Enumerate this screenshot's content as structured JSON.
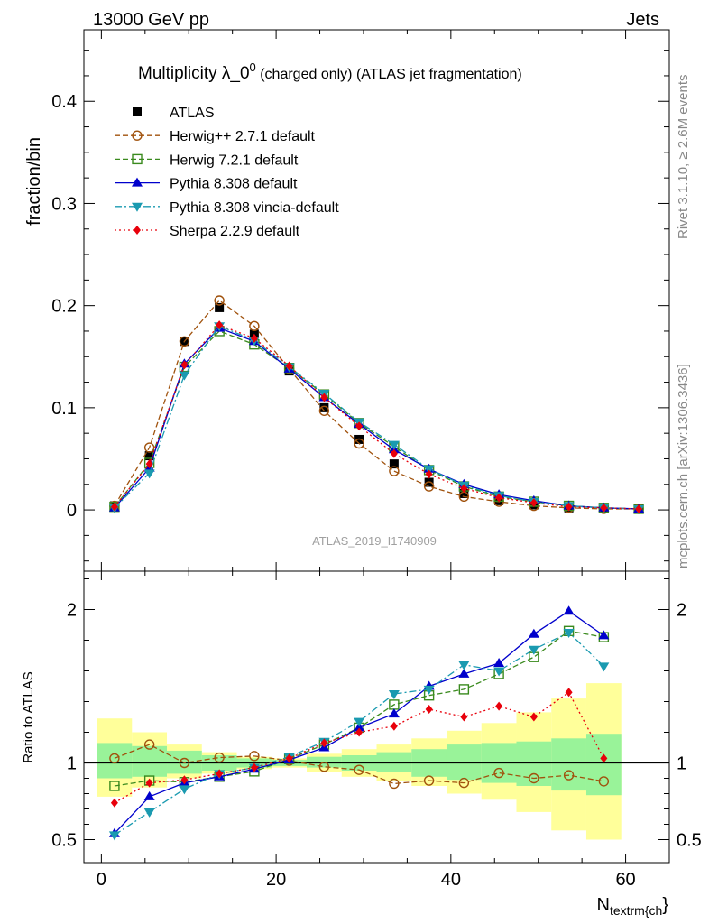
{
  "header": {
    "left": "13000 GeV pp",
    "right": "Jets"
  },
  "side": {
    "rivet": "Rivet 3.1.10, ≥ 2.6M events",
    "mcplots": "mcplots.cern.ch [arXiv:1306.3436]"
  },
  "chart_data": [
    {
      "type": "line",
      "title": "Multiplicity λ_0⁰ (charged only) (ATLAS jet fragmentation)",
      "title_main": "Multiplicity λ_0",
      "title_sup": "0",
      "title_tail": " (charged only) (ATLAS jet fragmentation)",
      "ylabel": "fraction/bin",
      "watermark": "ATLAS_2019_I1740909",
      "xlim": [
        -2,
        65
      ],
      "ylim": [
        -0.06,
        0.47
      ],
      "yticks": [
        0,
        0.1,
        0.2,
        0.3,
        0.4
      ],
      "ytick_labels": [
        "0",
        "0.1",
        "0.2",
        "0.3",
        "0.4"
      ],
      "legend_position": "top-left",
      "x": [
        1.5,
        5.5,
        9.5,
        13.5,
        17.5,
        21.5,
        25.5,
        29.5,
        33.5,
        37.5,
        41.5,
        45.5,
        49.5,
        53.5,
        57.5,
        61.5
      ],
      "series": [
        {
          "name": "ATLAS",
          "color": "#000000",
          "marker": "square",
          "line": "none",
          "values": [
            0.004,
            0.053,
            0.165,
            0.198,
            0.172,
            0.136,
            0.1,
            0.069,
            0.045,
            0.027,
            0.016,
            0.009,
            0.005,
            0.002,
            0.001,
            0.001
          ]
        },
        {
          "name": "Herwig++ 2.7.1 default",
          "color": "#a0520d",
          "marker": "circle-open",
          "line": "dashed",
          "values": [
            0.004,
            0.061,
            0.165,
            0.205,
            0.18,
            0.138,
            0.097,
            0.065,
            0.038,
            0.023,
            0.013,
            0.008,
            0.004,
            0.002,
            0.001,
            0.001
          ]
        },
        {
          "name": "Herwig 7.2.1 default",
          "color": "#3a8a1e",
          "marker": "square-open",
          "line": "dashed",
          "values": [
            0.003,
            0.046,
            0.14,
            0.175,
            0.162,
            0.139,
            0.113,
            0.085,
            0.062,
            0.039,
            0.023,
            0.013,
            0.008,
            0.004,
            0.002,
            0.001
          ]
        },
        {
          "name": "Pythia 8.308 default",
          "color": "#0000cc",
          "marker": "triangle-up",
          "line": "solid",
          "values": [
            0.002,
            0.041,
            0.143,
            0.178,
            0.165,
            0.138,
            0.11,
            0.084,
            0.059,
            0.04,
            0.025,
            0.015,
            0.009,
            0.004,
            0.002,
            0.001
          ]
        },
        {
          "name": "Pythia 8.308 vincia-default",
          "color": "#1a9ab0",
          "marker": "triangle-down",
          "line": "dashdot",
          "values": [
            0.002,
            0.036,
            0.132,
            0.18,
            0.166,
            0.14,
            0.114,
            0.086,
            0.064,
            0.04,
            0.024,
            0.014,
            0.008,
            0.004,
            0.002,
            0.001
          ]
        },
        {
          "name": "Sherpa 2.2.9 default",
          "color": "#e8000b",
          "marker": "diamond",
          "line": "dotted",
          "values": [
            0.003,
            0.045,
            0.142,
            0.181,
            0.168,
            0.141,
            0.11,
            0.082,
            0.055,
            0.035,
            0.021,
            0.012,
            0.007,
            0.003,
            0.002,
            0.001
          ]
        }
      ]
    },
    {
      "type": "line",
      "ylabel": "Ratio to ATLAS",
      "xlabel": "N_{textrm{ch}}",
      "xlabel_main": "N",
      "xlabel_sub": "textrm{ch",
      "xlabel_tail": "}",
      "xlim": [
        -2,
        65
      ],
      "ylim": [
        0.35,
        2.25
      ],
      "xticks": [
        0,
        20,
        40,
        60
      ],
      "xtick_labels": [
        "0",
        "20",
        "40",
        "60"
      ],
      "yticks": [
        0.5,
        1,
        2
      ],
      "ytick_labels": [
        "0.5",
        "1",
        "2"
      ],
      "band_edges": [
        -0.5,
        3.5,
        7.5,
        11.5,
        15.5,
        19.5,
        23.5,
        27.5,
        31.5,
        35.5,
        39.5,
        43.5,
        47.5,
        51.5,
        55.5,
        59.5
      ],
      "band_inner": [
        [
          0.9,
          1.13
        ],
        [
          0.91,
          1.11
        ],
        [
          0.93,
          1.08
        ],
        [
          0.95,
          1.05
        ],
        [
          0.97,
          1.03
        ],
        [
          0.98,
          1.02
        ],
        [
          0.97,
          1.04
        ],
        [
          0.95,
          1.05
        ],
        [
          0.94,
          1.07
        ],
        [
          0.91,
          1.09
        ],
        [
          0.89,
          1.12
        ],
        [
          0.87,
          1.13
        ],
        [
          0.85,
          1.14
        ],
        [
          0.82,
          1.16
        ],
        [
          0.79,
          1.19
        ]
      ],
      "band_outer": [
        [
          0.78,
          1.29
        ],
        [
          0.84,
          1.2
        ],
        [
          0.9,
          1.12
        ],
        [
          0.93,
          1.07
        ],
        [
          0.96,
          1.04
        ],
        [
          0.97,
          1.03
        ],
        [
          0.94,
          1.06
        ],
        [
          0.91,
          1.09
        ],
        [
          0.88,
          1.12
        ],
        [
          0.85,
          1.16
        ],
        [
          0.8,
          1.21
        ],
        [
          0.76,
          1.26
        ],
        [
          0.68,
          1.33
        ],
        [
          0.56,
          1.42
        ],
        [
          0.5,
          1.52
        ]
      ],
      "series": [
        {
          "name": "Herwig++ 2.7.1 default",
          "color": "#a0520d",
          "marker": "circle-open",
          "line": "dashed",
          "values": [
            1.03,
            1.12,
            1.0,
            1.035,
            1.045,
            1.015,
            0.975,
            0.955,
            0.865,
            0.885,
            0.87,
            0.935,
            0.9,
            0.92,
            0.88
          ]
        },
        {
          "name": "Herwig 7.2.1 default",
          "color": "#3a8a1e",
          "marker": "square-open",
          "line": "dashed",
          "values": [
            0.85,
            0.885,
            0.875,
            0.91,
            0.945,
            1.025,
            1.12,
            1.23,
            1.38,
            1.44,
            1.48,
            1.58,
            1.69,
            1.86,
            1.82
          ]
        },
        {
          "name": "Pythia 8.308 default",
          "color": "#0000cc",
          "marker": "triangle-up",
          "line": "solid",
          "values": [
            0.54,
            0.78,
            0.87,
            0.91,
            0.96,
            1.02,
            1.1,
            1.23,
            1.32,
            1.5,
            1.58,
            1.65,
            1.84,
            1.99,
            1.83
          ]
        },
        {
          "name": "Pythia 8.308 vincia-default",
          "color": "#1a9ab0",
          "marker": "triangle-down",
          "line": "dashdot",
          "values": [
            0.53,
            0.68,
            0.83,
            0.93,
            0.97,
            1.04,
            1.14,
            1.27,
            1.45,
            1.48,
            1.64,
            1.6,
            1.74,
            1.85,
            1.63
          ]
        },
        {
          "name": "Sherpa 2.2.9 default",
          "color": "#e8000b",
          "marker": "diamond",
          "line": "dotted",
          "values": [
            0.74,
            0.87,
            0.89,
            0.93,
            0.97,
            1.03,
            1.13,
            1.2,
            1.24,
            1.35,
            1.3,
            1.37,
            1.3,
            1.46,
            1.03
          ]
        }
      ]
    }
  ]
}
